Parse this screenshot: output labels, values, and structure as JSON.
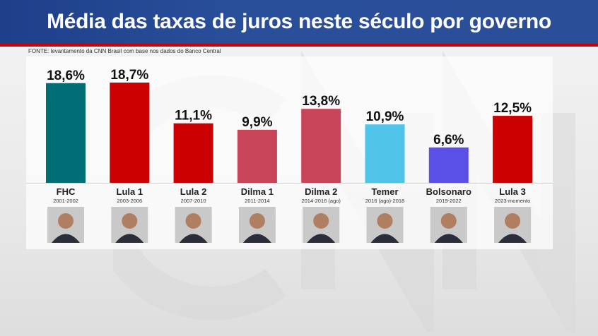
{
  "header": {
    "title": "Média das taxas de juros neste século por governo"
  },
  "source": "FONTE: levantamento da CNN Brasil com base nos dados do Banco Central",
  "chart_data": {
    "type": "bar",
    "title": "Média das taxas de juros neste século por governo",
    "categories": [
      "FHC",
      "Lula 1",
      "Lula 2",
      "Dilma 1",
      "Dilma 2",
      "Temer",
      "Bolsonaro",
      "Lula 3"
    ],
    "periods": [
      "2001-2002",
      "2003-2006",
      "2007-2010",
      "2011-2014",
      "2014-2016 (ago)",
      "2016 (ago)-2018",
      "2019-2022",
      "2023-momento"
    ],
    "values": [
      18.6,
      18.7,
      11.1,
      9.9,
      13.8,
      10.9,
      6.6,
      12.5
    ],
    "value_labels": [
      "18,6%",
      "18,7%",
      "11,1%",
      "9,9%",
      "13,8%",
      "10,9%",
      "6,6%",
      "12,5%"
    ],
    "colors": [
      "#006e74",
      "#cc0000",
      "#cc0000",
      "#c84458",
      "#c84458",
      "#4fc3e8",
      "#5a4fe6",
      "#cc0000"
    ],
    "ylim": [
      0,
      18.7
    ],
    "grid": false,
    "legend": "none"
  }
}
